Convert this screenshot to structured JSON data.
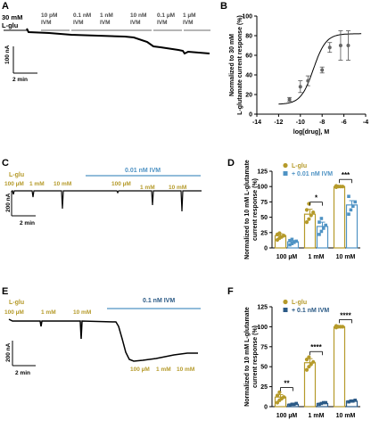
{
  "colors": {
    "trace": "#000000",
    "lglu": "#b59a2a",
    "ivm_light": "#4f93c4",
    "ivm_dark": "#2b5a86",
    "bar_line_A": "#8a8a8a"
  },
  "panel_labels": {
    "A": "A",
    "B": "B",
    "C": "C",
    "D": "D",
    "E": "E",
    "F": "F"
  },
  "panelA": {
    "lglu_label": "30 mM\nL-glu",
    "conditions": [
      "10 pM\nIVM",
      "0.1 nM\nIVM",
      "1 nM\nIVM",
      "10 nM\nIVM",
      "0.1 µM\nIVM",
      "1 µM\nIVM"
    ],
    "scale_y": "100 nA",
    "scale_x": "2 min"
  },
  "panelC": {
    "lglu": "L-glu",
    "concs": [
      "100 µM",
      "1 mM",
      "10 mM"
    ],
    "ivm": "0.01 nM IVM",
    "concs_ivm": [
      "100 µM",
      "1 mM",
      "10 mM"
    ],
    "scale_y": "200 nA",
    "scale_x": "2 min"
  },
  "panelE": {
    "lglu": "L-glu",
    "concs": [
      "100 µM",
      "1 mM",
      "10 mM"
    ],
    "ivm": "0.1 nM IVM",
    "concs_ivm": [
      "100 µM",
      "1 mM",
      "10 mM"
    ],
    "scale_y": "200 nA",
    "scale_x": "2 min"
  },
  "chart_data": [
    {
      "panel": "B",
      "type": "scatter",
      "xlabel": "log[drug], M",
      "ylabel": "Normalized to 30 mM\nL-glutamate current response (%)",
      "xlim": [
        -14,
        -4
      ],
      "ylim": [
        0,
        100
      ],
      "x_ticks": [
        -14,
        -12,
        -10,
        -8,
        -6,
        -4
      ],
      "y_ticks": [
        0,
        20,
        40,
        60,
        80,
        100
      ],
      "points": [
        {
          "x": -11,
          "y": 15,
          "err": 2
        },
        {
          "x": -10,
          "y": 28,
          "err": 6
        },
        {
          "x": -9.3,
          "y": 34,
          "err": 5
        },
        {
          "x": -8,
          "y": 45,
          "err": 3
        },
        {
          "x": -7.3,
          "y": 68,
          "err": 5
        },
        {
          "x": -6.3,
          "y": 70,
          "err": 15
        },
        {
          "x": -5.6,
          "y": 70,
          "err": 15
        }
      ],
      "fit": {
        "bottom": 10,
        "top": 82,
        "logEC50": -8.8,
        "hill": 0.75
      }
    },
    {
      "panel": "D",
      "type": "bar",
      "ylabel": "Normalized to 10 mM L-glutamate\ncurrent response (%)",
      "categories": [
        "100 µM",
        "1 mM",
        "10 mM"
      ],
      "ylim": [
        0,
        125
      ],
      "y_ticks": [
        0,
        25,
        50,
        75,
        100,
        125
      ],
      "series": [
        {
          "name": "L-glu",
          "color": "#b59a2a",
          "values": [
            20,
            55,
            100
          ],
          "errors": [
            3,
            8,
            0
          ],
          "points": [
            [
              13,
              16,
              18,
              20,
              22,
              24
            ],
            [
              42,
              47,
              53,
              58,
              62,
              72
            ],
            [
              99,
              100,
              100,
              100,
              101
            ]
          ]
        },
        {
          "name": "+ 0.01 nM IVM",
          "color": "#4f93c4",
          "values": [
            10,
            35,
            70
          ],
          "errors": [
            2,
            7,
            7
          ],
          "points": [
            [
              5,
              7,
              9,
              11,
              12,
              14
            ],
            [
              22,
              27,
              32,
              37,
              42,
              48
            ],
            [
              55,
              62,
              68,
              75,
              84
            ]
          ]
        }
      ],
      "significance": [
        "",
        "*",
        "***"
      ]
    },
    {
      "panel": "F",
      "type": "bar",
      "ylabel": "Normalized to 10 mM L-glutamate\ncurrent response (%)",
      "categories": [
        "100 µM",
        "1 mM",
        "10 mM"
      ],
      "ylim": [
        0,
        125
      ],
      "y_ticks": [
        0,
        25,
        50,
        75,
        100,
        125
      ],
      "series": [
        {
          "name": "L-glu",
          "color": "#b59a2a",
          "values": [
            12,
            55,
            100
          ],
          "errors": [
            3,
            5,
            0
          ],
          "points": [
            [
              5,
              8,
              10,
              12,
              14,
              18
            ],
            [
              46,
              50,
              53,
              56,
              59,
              62
            ],
            [
              99,
              100,
              100,
              100,
              101
            ]
          ]
        },
        {
          "name": "+ 0.1 nM IVM",
          "color": "#2b5a86",
          "values": [
            3,
            4,
            7
          ],
          "errors": [
            1,
            1,
            1
          ],
          "points": [
            [
              2,
              3,
              3,
              4
            ],
            [
              3,
              4,
              5,
              5
            ],
            [
              6,
              7,
              7,
              8
            ]
          ]
        }
      ],
      "significance": [
        "**",
        "****",
        "****"
      ]
    }
  ]
}
